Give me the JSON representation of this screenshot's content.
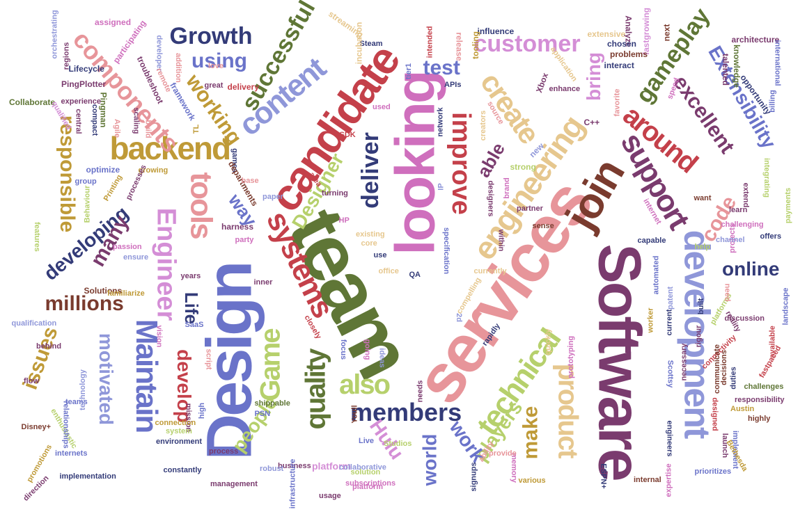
{
  "palette": {
    "olive_green": "#5f7636",
    "crimson": "#c4404a",
    "magenta_pink": "#cf6fbd",
    "light_pink": "#e7959a",
    "plum": "#7a3b6e",
    "navy": "#333b78",
    "periwinkle": "#6a73c9",
    "lavender": "#8f97d9",
    "lime": "#b6d06c",
    "mustard": "#bf9a37",
    "tan": "#e6c78e",
    "dark_brown": "#7a3b2e",
    "orchid": "#d48ed6"
  },
  "words": [
    {
      "text": "team",
      "color": "#5f7636"
    },
    {
      "text": "services",
      "color": "#e7959a"
    },
    {
      "text": "Design",
      "color": "#6a73c9"
    },
    {
      "text": "Software",
      "color": "#7a3b6e"
    },
    {
      "text": "looking",
      "color": "#cf6fbd"
    },
    {
      "text": "candidate",
      "color": "#c4404a"
    },
    {
      "text": "development",
      "color": "#8f97d9"
    },
    {
      "text": "join",
      "color": "#7a3b2e"
    },
    {
      "text": "systems",
      "color": "#c4404a"
    },
    {
      "text": "engineering",
      "color": "#e6c78e"
    },
    {
      "text": "technical",
      "color": "#b6d06c"
    },
    {
      "text": "content",
      "color": "#8f97d9"
    },
    {
      "text": "Maintain",
      "color": "#6a73c9"
    },
    {
      "text": "backend",
      "color": "#bf9a37"
    },
    {
      "text": "support",
      "color": "#7a3b6e"
    },
    {
      "text": "around",
      "color": "#c4404a"
    },
    {
      "text": "create",
      "color": "#e6c78e"
    },
    {
      "text": "Engineer",
      "color": "#d48ed6"
    },
    {
      "text": "tools",
      "color": "#e7959a"
    },
    {
      "text": "Game",
      "color": "#b6d06c"
    },
    {
      "text": "quality",
      "color": "#5f7636"
    },
    {
      "text": "product",
      "color": "#e6c78e"
    },
    {
      "text": "members",
      "color": "#333b78"
    },
    {
      "text": "also",
      "color": "#b6d06c"
    },
    {
      "text": "components",
      "color": "#e7959a"
    },
    {
      "text": "successful",
      "color": "#5f7636"
    },
    {
      "text": "deliver",
      "color": "#333b78"
    },
    {
      "text": "improve",
      "color": "#c4404a"
    },
    {
      "text": "Growth",
      "color": "#333b78"
    },
    {
      "text": "customer",
      "color": "#d48ed6"
    },
    {
      "text": "gameplay",
      "color": "#5f7636"
    },
    {
      "text": "Extensibility",
      "color": "#6a73c9"
    },
    {
      "text": "excellent",
      "color": "#7a3b6e"
    },
    {
      "text": "responsible",
      "color": "#bf9a37"
    },
    {
      "text": "working",
      "color": "#bf9a37"
    },
    {
      "text": "developing",
      "color": "#333b78"
    },
    {
      "text": "millions",
      "color": "#7a3b2e"
    },
    {
      "text": "many",
      "color": "#7a3b6e"
    },
    {
      "text": "issues",
      "color": "#bf9a37"
    },
    {
      "text": "motivated",
      "color": "#8f97d9"
    },
    {
      "text": "develop",
      "color": "#c4404a"
    },
    {
      "text": "Life",
      "color": "#333b78"
    },
    {
      "text": "online",
      "color": "#333b78"
    },
    {
      "text": "players",
      "color": "#b6d06c"
    },
    {
      "text": "make",
      "color": "#bf9a37"
    },
    {
      "text": "work",
      "color": "#6a73c9"
    },
    {
      "text": "world",
      "color": "#6a73c9"
    },
    {
      "text": "Hulu",
      "color": "#d48ed6"
    },
    {
      "text": "people",
      "color": "#b6d06c"
    },
    {
      "text": "Designer",
      "color": "#b6d06c"
    },
    {
      "text": "using",
      "color": "#6a73c9"
    },
    {
      "text": "test",
      "color": "#6a73c9"
    },
    {
      "text": "bring",
      "color": "#d48ed6"
    },
    {
      "text": "able",
      "color": "#7a3b6e"
    },
    {
      "text": "code",
      "color": "#e7959a"
    },
    {
      "text": "way",
      "color": "#6a73c9"
    },
    {
      "text": "platform",
      "color": "#d48ed6"
    },
    {
      "text": "architecture",
      "color": "#7a3b6e"
    },
    {
      "text": "international",
      "color": "#6a73c9"
    },
    {
      "text": "billing",
      "color": "#6a73c9"
    },
    {
      "text": "knowledge",
      "color": "#5f7636"
    },
    {
      "text": "talented",
      "color": "#7a3b6e"
    },
    {
      "text": "opportunity",
      "color": "#333b78"
    },
    {
      "text": "next",
      "color": "#7a3b2e"
    },
    {
      "text": "fastgrowing",
      "color": "#d48ed6"
    },
    {
      "text": "Analyze",
      "color": "#7a3b6e"
    },
    {
      "text": "extensive",
      "color": "#e6c78e"
    },
    {
      "text": "chosen",
      "color": "#333b78"
    },
    {
      "text": "problems",
      "color": "#7a3b2e"
    },
    {
      "text": "interact",
      "color": "#333b78"
    },
    {
      "text": "influence",
      "color": "#333b78"
    },
    {
      "text": "tooling",
      "color": "#bf9a37"
    },
    {
      "text": "release",
      "color": "#e7959a"
    },
    {
      "text": "intended",
      "color": "#c4404a"
    },
    {
      "text": "Steam",
      "color": "#333b78"
    },
    {
      "text": "incubation",
      "color": "#e6c78e"
    },
    {
      "text": "streaming",
      "color": "#e6c78e"
    },
    {
      "text": "assigned",
      "color": "#cf6fbd"
    },
    {
      "text": "orchestrating",
      "color": "#8f97d9"
    },
    {
      "text": "regions",
      "color": "#7a3b6e"
    },
    {
      "text": "participating",
      "color": "#cf6fbd"
    },
    {
      "text": "developer",
      "color": "#8f97d9"
    },
    {
      "text": "troubleshoot",
      "color": "#7a3b6e"
    },
    {
      "text": "Lifecycle",
      "color": "#333b78"
    },
    {
      "text": "PingPlotter",
      "color": "#7a3b6e"
    },
    {
      "text": "Collaborate",
      "color": "#5f7636"
    },
    {
      "text": "qualified",
      "color": "#d48ed6"
    },
    {
      "text": "Pingman",
      "color": "#5f7636"
    },
    {
      "text": "experience",
      "color": "#7a3b6e"
    },
    {
      "text": "central",
      "color": "#7a3b6e"
    },
    {
      "text": "compact",
      "color": "#333b78"
    },
    {
      "text": "Agile",
      "color": "#e7959a"
    },
    {
      "text": "build",
      "color": "#e7959a"
    },
    {
      "text": "scaling",
      "color": "#7a3b6e"
    },
    {
      "text": "remote",
      "color": "#e7959a"
    },
    {
      "text": "framework",
      "color": "#6a73c9"
    },
    {
      "text": "addition",
      "color": "#e7959a"
    },
    {
      "text": "TL",
      "color": "#bf9a37"
    },
    {
      "text": "great",
      "color": "#7a3b6e"
    },
    {
      "text": "delivery",
      "color": "#c4404a"
    },
    {
      "text": "love",
      "color": "#e7959a"
    },
    {
      "text": "games",
      "color": "#333b78"
    },
    {
      "text": "SDK",
      "color": "#c4404a"
    },
    {
      "text": "APIs",
      "color": "#333b78"
    },
    {
      "text": "tier1",
      "color": "#6a73c9"
    },
    {
      "text": "used",
      "color": "#cf6fbd"
    },
    {
      "text": "network",
      "color": "#333b78"
    },
    {
      "text": "creators",
      "color": "#e6c78e"
    },
    {
      "text": "Xbox",
      "color": "#7a3b6e"
    },
    {
      "text": "application",
      "color": "#e6c78e"
    },
    {
      "text": "enhance",
      "color": "#7a3b6e"
    },
    {
      "text": "source",
      "color": "#e7959a"
    },
    {
      "text": "C++",
      "color": "#7a3b6e"
    },
    {
      "text": "favorite",
      "color": "#e7959a"
    },
    {
      "text": "speed",
      "color": "#cf6fbd"
    },
    {
      "text": "new",
      "color": "#8f97d9"
    },
    {
      "text": "optimize",
      "color": "#6a73c9"
    },
    {
      "text": "growing",
      "color": "#bf9a37"
    },
    {
      "text": "group",
      "color": "#6a73c9"
    },
    {
      "text": "Printing",
      "color": "#bf9a37"
    },
    {
      "text": "processes",
      "color": "#7a3b6e"
    },
    {
      "text": "Behaviour",
      "color": "#b6d06c"
    },
    {
      "text": "departments",
      "color": "#7a3b2e"
    },
    {
      "text": "base",
      "color": "#e7959a"
    },
    {
      "text": "paper",
      "color": "#8f97d9"
    },
    {
      "text": "area",
      "color": "#c4404a"
    },
    {
      "text": "turning",
      "color": "#7a3b6e"
    },
    {
      "text": "HP",
      "color": "#cf6fbd"
    },
    {
      "text": "IP",
      "color": "#8f97d9"
    },
    {
      "text": "strong",
      "color": "#b6d06c"
    },
    {
      "text": "brand",
      "color": "#cf6fbd"
    },
    {
      "text": "designers",
      "color": "#7a3b6e"
    },
    {
      "text": "partner",
      "color": "#7a3b6e"
    },
    {
      "text": "sense",
      "color": "#7a3b2e"
    },
    {
      "text": "internet",
      "color": "#cf6fbd"
    },
    {
      "text": "want",
      "color": "#7a3b2e"
    },
    {
      "text": "payments",
      "color": "#b6d06c"
    },
    {
      "text": "integrating",
      "color": "#b6d06c"
    },
    {
      "text": "extend",
      "color": "#7a3b6e"
    },
    {
      "text": "learn",
      "color": "#7a3b6e"
    },
    {
      "text": "challenging",
      "color": "#cf6fbd"
    },
    {
      "text": "projects",
      "color": "#cf6fbd"
    },
    {
      "text": "offers",
      "color": "#333b78"
    },
    {
      "text": "channel",
      "color": "#8f97d9"
    },
    {
      "text": "help",
      "color": "#b6d06c"
    },
    {
      "text": "capable",
      "color": "#333b78"
    },
    {
      "text": "harness",
      "color": "#7a3b6e"
    },
    {
      "text": "party",
      "color": "#cf6fbd"
    },
    {
      "text": "existing",
      "color": "#e6c78e"
    },
    {
      "text": "core",
      "color": "#e6c78e"
    },
    {
      "text": "use",
      "color": "#333b78"
    },
    {
      "text": "specification",
      "color": "#6a73c9"
    },
    {
      "text": "within",
      "color": "#7a3b6e"
    },
    {
      "text": "automated",
      "color": "#6a73c9"
    },
    {
      "text": "currently",
      "color": "#e6c78e"
    },
    {
      "text": "compelling",
      "color": "#e6c78e"
    },
    {
      "text": "features",
      "color": "#b6d06c"
    },
    {
      "text": "passion",
      "color": "#cf6fbd"
    },
    {
      "text": "ensure",
      "color": "#8f97d9"
    },
    {
      "text": "Solutions",
      "color": "#7a3b2e"
    },
    {
      "text": "familiarize",
      "color": "#bf9a37"
    },
    {
      "text": "years",
      "color": "#7a3b6e"
    },
    {
      "text": "SaaS",
      "color": "#6a73c9"
    },
    {
      "text": "inner",
      "color": "#7a3b6e"
    },
    {
      "text": "office",
      "color": "#e6c78e"
    },
    {
      "text": "QA",
      "color": "#333b78"
    },
    {
      "text": "2d",
      "color": "#8f97d9"
    },
    {
      "text": "qualification",
      "color": "#8f97d9"
    },
    {
      "text": "vision",
      "color": "#cf6fbd"
    },
    {
      "text": "behind",
      "color": "#7a3b6e"
    },
    {
      "text": "closely",
      "color": "#c4404a"
    },
    {
      "text": "focus",
      "color": "#6a73c9"
    },
    {
      "text": "going",
      "color": "#cf6fbd"
    },
    {
      "text": "ideas",
      "color": "#8f97d9"
    },
    {
      "text": "flow",
      "color": "#7a3b6e"
    },
    {
      "text": "teams",
      "color": "#6a73c9"
    },
    {
      "text": "technology",
      "color": "#8f97d9"
    },
    {
      "text": "high",
      "color": "#6a73c9"
    },
    {
      "text": "mission",
      "color": "#7a3b6e"
    },
    {
      "text": "script",
      "color": "#e7959a"
    },
    {
      "text": "quickly",
      "color": "#e6c78e"
    },
    {
      "text": "rapidly",
      "color": "#333b78"
    },
    {
      "text": "prototyping",
      "color": "#cf6fbd"
    },
    {
      "text": "worker",
      "color": "#bf9a37"
    },
    {
      "text": "patent",
      "color": "#8f97d9"
    },
    {
      "text": "current",
      "color": "#333b78"
    },
    {
      "text": "built",
      "color": "#333b78"
    },
    {
      "text": "platforms",
      "color": "#b6d06c"
    },
    {
      "text": "reality",
      "color": "#7a3b6e"
    },
    {
      "text": "discussion",
      "color": "#7a3b6e"
    },
    {
      "text": "landscape",
      "color": "#6a73c9"
    },
    {
      "text": "need",
      "color": "#e7959a"
    },
    {
      "text": "rigour",
      "color": "#7a3b6e"
    },
    {
      "text": "connectivity",
      "color": "#c4404a"
    },
    {
      "text": "available",
      "color": "#c4404a"
    },
    {
      "text": "fastpaced",
      "color": "#c4404a"
    },
    {
      "text": "duties",
      "color": "#333b78"
    },
    {
      "text": "decisions",
      "color": "#7a3b2e"
    },
    {
      "text": "communicate",
      "color": "#7a3b2e"
    },
    {
      "text": "Scottsy",
      "color": "#6a73c9"
    },
    {
      "text": "necessary",
      "color": "#7a3b6e"
    },
    {
      "text": "challenges",
      "color": "#5f7636"
    },
    {
      "text": "responsibility",
      "color": "#7a3b6e"
    },
    {
      "text": "Austin",
      "color": "#bf9a37"
    },
    {
      "text": "highly",
      "color": "#7a3b2e"
    },
    {
      "text": "designed",
      "color": "#c4404a"
    },
    {
      "text": "launch",
      "color": "#7a3b6e"
    },
    {
      "text": "implement",
      "color": "#6a73c9"
    },
    {
      "text": "Bethesda",
      "color": "#bf9a37"
    },
    {
      "text": "engineers",
      "color": "#333b78"
    },
    {
      "text": "expertise",
      "color": "#cf6fbd"
    },
    {
      "text": "prioritizes",
      "color": "#6a73c9"
    },
    {
      "text": "internal",
      "color": "#7a3b2e"
    },
    {
      "text": "memory",
      "color": "#cf6fbd"
    },
    {
      "text": "various",
      "color": "#bf9a37"
    },
    {
      "text": "provide",
      "color": "#e7959a"
    },
    {
      "text": "ability",
      "color": "#e7959a"
    },
    {
      "text": "signups",
      "color": "#333b78"
    },
    {
      "text": "Studios",
      "color": "#b6d06c"
    },
    {
      "text": "Live",
      "color": "#6a73c9"
    },
    {
      "text": "needs",
      "color": "#7a3b6e"
    },
    {
      "text": "collaborative",
      "color": "#8f97d9"
    },
    {
      "text": "solution",
      "color": "#b6d06c"
    },
    {
      "text": "platform2",
      "color": "#cf6fbd"
    },
    {
      "text": "subscriptions",
      "color": "#cf6fbd"
    },
    {
      "text": "usage",
      "color": "#7a3b6e"
    },
    {
      "text": "Youll",
      "color": "#7a3b2e"
    },
    {
      "text": "shippable",
      "color": "#5f7636"
    },
    {
      "text": "PSN",
      "color": "#6a73c9"
    },
    {
      "text": "business",
      "color": "#7a3b6e"
    },
    {
      "text": "infrastructure",
      "color": "#6a73c9"
    },
    {
      "text": "robust",
      "color": "#8f97d9"
    },
    {
      "text": "management",
      "color": "#7a3b6e"
    },
    {
      "text": "process",
      "color": "#7a3b6e"
    },
    {
      "text": "environment",
      "color": "#333b78"
    },
    {
      "text": "constantly",
      "color": "#333b78"
    },
    {
      "text": "connection",
      "color": "#bf9a37"
    },
    {
      "text": "system",
      "color": "#b6d06c"
    },
    {
      "text": "implementation",
      "color": "#333b78"
    },
    {
      "text": "enthusiastic",
      "color": "#b6d06c"
    },
    {
      "text": "internets",
      "color": "#6a73c9"
    },
    {
      "text": "promotions",
      "color": "#bf9a37"
    },
    {
      "text": "direction",
      "color": "#7a3b6e"
    },
    {
      "text": "Disney+",
      "color": "#7a3b2e"
    },
    {
      "text": "relationships",
      "color": "#6a73c9"
    },
    {
      "text": "ESPN+",
      "color": "#333b78"
    }
  ]
}
